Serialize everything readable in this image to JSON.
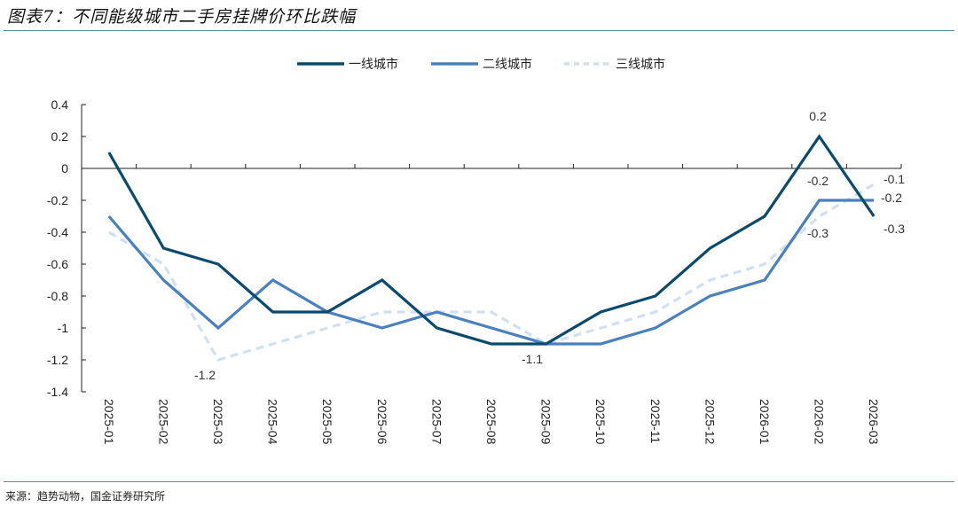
{
  "header": {
    "title": "图表7：不同能级城市二手房挂牌价环比跌幅"
  },
  "footer": {
    "source": "来源：趋势动物，国金证券研究所"
  },
  "colors": {
    "tier1": "#0b4a6e",
    "tier2": "#4a80bf",
    "tier3": "#cfe0f1",
    "axis": "#222222",
    "rule": "#5b8ea3"
  },
  "chart_data": {
    "type": "line",
    "title": "不同能级城市二手房挂牌价环比跌幅",
    "xlabel": "",
    "ylabel": "",
    "ylim": [
      -1.4,
      0.4
    ],
    "yticks": [
      0.4,
      0.2,
      0,
      -0.2,
      -0.4,
      -0.6,
      -0.8,
      -1,
      -1.2,
      -1.4
    ],
    "ytick_labels": [
      "0.4",
      "0.2",
      "0",
      "-0.2",
      "-0.4",
      "-0.6",
      "-0.8",
      "-1",
      "-1.2",
      "-1.4"
    ],
    "grid": false,
    "legend_position": "top",
    "categories": [
      "2025-01",
      "2025-02",
      "2025-03",
      "2025-04",
      "2025-05",
      "2025-06",
      "2025-07",
      "2025-08",
      "2025-09",
      "2025-10",
      "2025-11",
      "2025-12",
      "2026-01",
      "2026-02",
      "2026-03"
    ],
    "series": [
      {
        "name": "一线城市",
        "style": "solid-dark",
        "values": [
          0.1,
          -0.5,
          -0.6,
          -0.9,
          -0.9,
          -0.7,
          -1.0,
          -1.1,
          -1.1,
          -0.9,
          -0.8,
          -0.5,
          -0.3,
          0.2,
          -0.3
        ]
      },
      {
        "name": "二线城市",
        "style": "solid-medium",
        "values": [
          -0.3,
          -0.7,
          -1.0,
          -0.7,
          -0.9,
          -1.0,
          -0.9,
          -1.0,
          -1.1,
          -1.1,
          -1.0,
          -0.8,
          -0.7,
          -0.2,
          -0.2
        ]
      },
      {
        "name": "三线城市",
        "style": "dashed-light",
        "values": [
          -0.4,
          -0.6,
          -1.2,
          -1.1,
          -1.0,
          -0.9,
          -0.9,
          -0.9,
          -1.1,
          -1.0,
          -0.9,
          -0.7,
          -0.6,
          -0.3,
          -0.1
        ]
      }
    ],
    "annotations": [
      {
        "text": "-1.2",
        "category": "2025-03",
        "series": "三线城市"
      },
      {
        "text": "-1.1",
        "category": "2025-09",
        "series": "二线城市"
      },
      {
        "text": "0.2",
        "category": "2026-02",
        "series": "一线城市"
      },
      {
        "text": "-0.2",
        "category": "2026-02",
        "series": "二线城市"
      },
      {
        "text": "-0.3",
        "category": "2026-02",
        "series": "三线城市"
      },
      {
        "text": "-0.1",
        "category": "2026-03",
        "series": "三线城市"
      },
      {
        "text": "-0.2",
        "category": "2026-03",
        "series": "二线城市"
      },
      {
        "text": "-0.3",
        "category": "2026-03",
        "series": "一线城市"
      }
    ]
  }
}
